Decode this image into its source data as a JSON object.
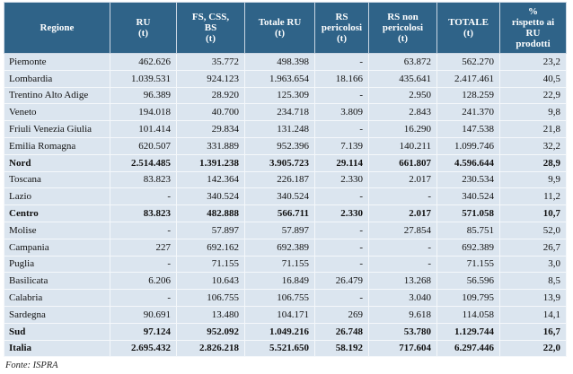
{
  "table": {
    "header": [
      [
        "Regione"
      ],
      [
        "RU",
        "(t)"
      ],
      [
        "FS, CSS,",
        "BS",
        "(t)"
      ],
      [
        "Totale RU",
        "(t)"
      ],
      [
        "RS",
        "pericolosi",
        "(t)"
      ],
      [
        "RS  non",
        "pericolosi",
        "(t)"
      ],
      [
        "TOTALE",
        "(t)"
      ],
      [
        "%",
        "rispetto ai",
        "RU",
        "prodotti"
      ]
    ],
    "rows": [
      {
        "cells": [
          "Piemonte",
          "462.626",
          "35.772",
          "498.398",
          "-",
          "63.872",
          "562.270",
          "23,2"
        ],
        "bold": false
      },
      {
        "cells": [
          "Lombardia",
          "1.039.531",
          "924.123",
          "1.963.654",
          "18.166",
          "435.641",
          "2.417.461",
          "40,5"
        ],
        "bold": false
      },
      {
        "cells": [
          "Trentino Alto Adige",
          "96.389",
          "28.920",
          "125.309",
          "-",
          "2.950",
          "128.259",
          "22,9"
        ],
        "bold": false
      },
      {
        "cells": [
          "Veneto",
          "194.018",
          "40.700",
          "234.718",
          "3.809",
          "2.843",
          "241.370",
          "9,8"
        ],
        "bold": false
      },
      {
        "cells": [
          "Friuli Venezia Giulia",
          "101.414",
          "29.834",
          "131.248",
          "-",
          "16.290",
          "147.538",
          "21,8"
        ],
        "bold": false
      },
      {
        "cells": [
          "Emilia Romagna",
          "620.507",
          "331.889",
          "952.396",
          "7.139",
          "140.211",
          "1.099.746",
          "32,2"
        ],
        "bold": false
      },
      {
        "cells": [
          "Nord",
          "2.514.485",
          "1.391.238",
          "3.905.723",
          "29.114",
          "661.807",
          "4.596.644",
          "28,9"
        ],
        "bold": true
      },
      {
        "cells": [
          "Toscana",
          "83.823",
          "142.364",
          "226.187",
          "2.330",
          "2.017",
          "230.534",
          "9,9"
        ],
        "bold": false
      },
      {
        "cells": [
          "Lazio",
          "-",
          "340.524",
          "340.524",
          "-",
          "-",
          "340.524",
          "11,2"
        ],
        "bold": false
      },
      {
        "cells": [
          "Centro",
          "83.823",
          "482.888",
          "566.711",
          "2.330",
          "2.017",
          "571.058",
          "10,7"
        ],
        "bold": true
      },
      {
        "cells": [
          "Molise",
          "-",
          "57.897",
          "57.897",
          "-",
          "27.854",
          "85.751",
          "52,0"
        ],
        "bold": false
      },
      {
        "cells": [
          "Campania",
          "227",
          "692.162",
          "692.389",
          "-",
          "-",
          "692.389",
          "26,7"
        ],
        "bold": false
      },
      {
        "cells": [
          "Puglia",
          "-",
          "71.155",
          "71.155",
          "-",
          "-",
          "71.155",
          "3,0"
        ],
        "bold": false
      },
      {
        "cells": [
          "Basilicata",
          "6.206",
          "10.643",
          "16.849",
          "26.479",
          "13.268",
          "56.596",
          "8,5"
        ],
        "bold": false
      },
      {
        "cells": [
          "Calabria",
          "-",
          "106.755",
          "106.755",
          "-",
          "3.040",
          "109.795",
          "13,9"
        ],
        "bold": false
      },
      {
        "cells": [
          "Sardegna",
          "90.691",
          "13.480",
          "104.171",
          "269",
          "9.618",
          "114.058",
          "14,1"
        ],
        "bold": false
      },
      {
        "cells": [
          "Sud",
          "97.124",
          "952.092",
          "1.049.216",
          "26.748",
          "53.780",
          "1.129.744",
          "16,7"
        ],
        "bold": true
      },
      {
        "cells": [
          "Italia",
          "2.695.432",
          "2.826.218",
          "5.521.650",
          "58.192",
          "717.604",
          "6.297.446",
          "22,0"
        ],
        "bold": true
      }
    ]
  },
  "footer": {
    "source": "Fonte: ISPRA"
  }
}
